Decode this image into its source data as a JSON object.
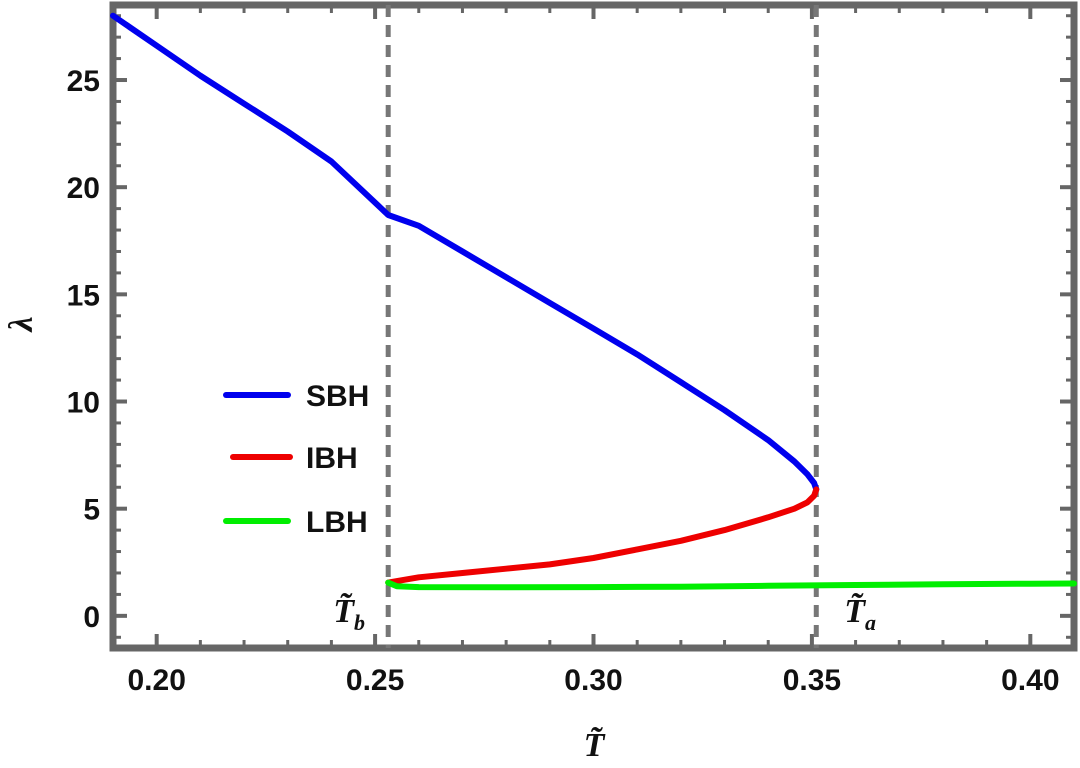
{
  "chart_data": {
    "type": "line",
    "xlabel": "T̃",
    "ylabel": "λ",
    "xlim": [
      0.19,
      0.41
    ],
    "ylim": [
      -1.5,
      28.5
    ],
    "x_ticks": [
      "0.20",
      "0.25",
      "0.30",
      "0.35",
      "0.40"
    ],
    "x_tick_values": [
      0.2,
      0.25,
      0.3,
      0.35,
      0.4
    ],
    "y_ticks": [
      "0",
      "5",
      "10",
      "15",
      "20",
      "25"
    ],
    "y_tick_values": [
      0,
      5,
      10,
      15,
      20,
      25
    ],
    "grid": false,
    "legend_position": "left",
    "frame_color": "#666666",
    "series": [
      {
        "name": "SBH",
        "color": "#0000ee",
        "points": [
          [
            0.19,
            28.0
          ],
          [
            0.2,
            26.6
          ],
          [
            0.21,
            25.2
          ],
          [
            0.22,
            23.9
          ],
          [
            0.23,
            22.6
          ],
          [
            0.24,
            21.2
          ],
          [
            0.253,
            18.7
          ],
          [
            0.26,
            18.2
          ],
          [
            0.27,
            17.0
          ],
          [
            0.28,
            15.8
          ],
          [
            0.29,
            14.6
          ],
          [
            0.3,
            13.4
          ],
          [
            0.31,
            12.2
          ],
          [
            0.32,
            10.9
          ],
          [
            0.33,
            9.6
          ],
          [
            0.34,
            8.2
          ],
          [
            0.346,
            7.2
          ],
          [
            0.349,
            6.6
          ],
          [
            0.3505,
            6.2
          ],
          [
            0.351,
            5.9
          ]
        ]
      },
      {
        "name": "IBH",
        "color": "#ee0000",
        "points": [
          [
            0.351,
            5.9
          ],
          [
            0.3505,
            5.6
          ],
          [
            0.349,
            5.3
          ],
          [
            0.346,
            5.0
          ],
          [
            0.34,
            4.6
          ],
          [
            0.33,
            4.0
          ],
          [
            0.32,
            3.5
          ],
          [
            0.31,
            3.1
          ],
          [
            0.3,
            2.7
          ],
          [
            0.29,
            2.4
          ],
          [
            0.28,
            2.2
          ],
          [
            0.27,
            2.0
          ],
          [
            0.26,
            1.8
          ],
          [
            0.253,
            1.55
          ]
        ]
      },
      {
        "name": "LBH",
        "color": "#00ee00",
        "points": [
          [
            0.253,
            1.55
          ],
          [
            0.255,
            1.38
          ],
          [
            0.26,
            1.34
          ],
          [
            0.28,
            1.33
          ],
          [
            0.3,
            1.34
          ],
          [
            0.32,
            1.36
          ],
          [
            0.34,
            1.4
          ],
          [
            0.36,
            1.44
          ],
          [
            0.38,
            1.47
          ],
          [
            0.4,
            1.5
          ],
          [
            0.41,
            1.51
          ]
        ]
      }
    ],
    "vlines": [
      {
        "x": 0.253,
        "label": "T̃",
        "sub": "b"
      },
      {
        "x": 0.351,
        "label": "T̃",
        "sub": "a"
      }
    ]
  }
}
